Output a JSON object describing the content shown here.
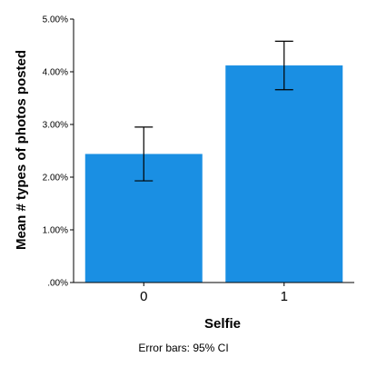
{
  "chart_data": {
    "type": "bar",
    "categories": [
      "0",
      "1"
    ],
    "values": [
      2.44,
      4.12
    ],
    "error_low": [
      1.93,
      3.66
    ],
    "error_high": [
      2.95,
      4.58
    ],
    "ylim": [
      0,
      5
    ],
    "y_ticks": [
      0,
      1,
      2,
      3,
      4,
      5
    ],
    "y_tick_labels": [
      ".00%",
      "1.00%",
      "2.00%",
      "3.00%",
      "4.00%",
      "5.00%"
    ],
    "xlabel": "Selfie",
    "ylabel": "Mean # types of photos posted",
    "note": "Error bars: 95% CI",
    "grid": false,
    "bar_color": "#1a8fe3",
    "error_bar_color": "#000000"
  }
}
